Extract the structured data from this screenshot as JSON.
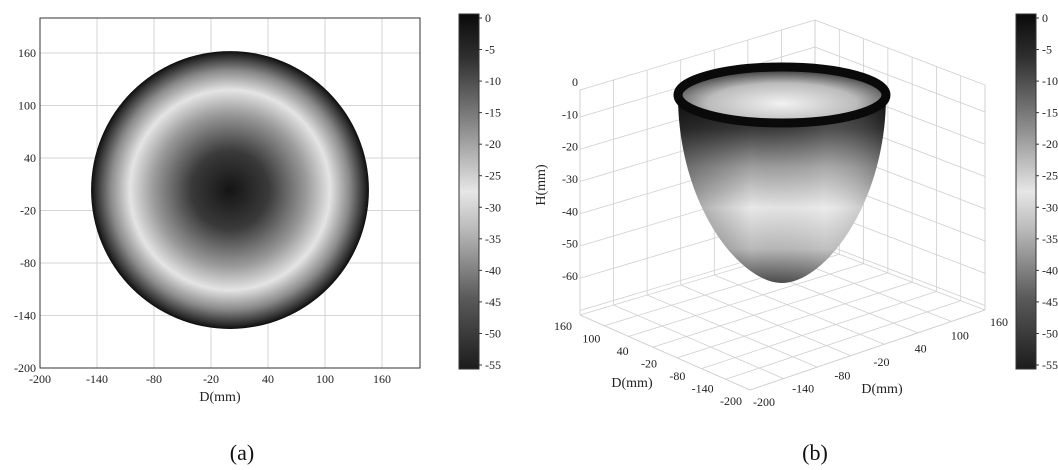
{
  "chart_data": [
    {
      "type": "heatmap",
      "panel": "(a)",
      "xlabel": "D(mm)",
      "ylabel": "",
      "xlim": [
        -200,
        200
      ],
      "ylim": [
        -200,
        200
      ],
      "x_ticks": [
        -200,
        -140,
        -80,
        -20,
        40,
        100,
        160
      ],
      "y_ticks": [
        -200,
        -140,
        -80,
        -20,
        40,
        100,
        160
      ],
      "grid": true,
      "surface": {
        "radius": 150,
        "center": [
          0,
          0
        ],
        "depth_at_center": -60,
        "depth_at_rim": 0
      },
      "colorbar": {
        "ticks": [
          0,
          -5,
          -10,
          -15,
          -20,
          -25,
          -30,
          -35,
          -40,
          -45,
          -50,
          -55
        ],
        "range": [
          -55,
          0
        ]
      },
      "colormap_stops": [
        "#141414",
        "#6e6e6e",
        "#e2e2e2",
        "#8a8a8a",
        "#1e1e1e"
      ]
    },
    {
      "type": "surface3d",
      "panel": "(b)",
      "xlabel": "D(mm)",
      "ylabel": "D(mm)",
      "zlabel": "H(mm)",
      "x_ticks": [
        -200,
        -140,
        -80,
        -20,
        40,
        100,
        160
      ],
      "y_ticks": [
        160,
        100,
        40,
        -20,
        -80,
        -140,
        -200
      ],
      "z_ticks": [
        0,
        -10,
        -20,
        -30,
        -40,
        -50,
        -60
      ],
      "zlim": [
        -60,
        0
      ],
      "surface": {
        "shape": "paraboloid",
        "radius": 150,
        "depth": -60
      },
      "grid": true,
      "colorbar": {
        "ticks": [
          0,
          -5,
          -10,
          -15,
          -20,
          -25,
          -30,
          -35,
          -40,
          -45,
          -50,
          -55
        ],
        "range": [
          -55,
          0
        ]
      }
    }
  ]
}
